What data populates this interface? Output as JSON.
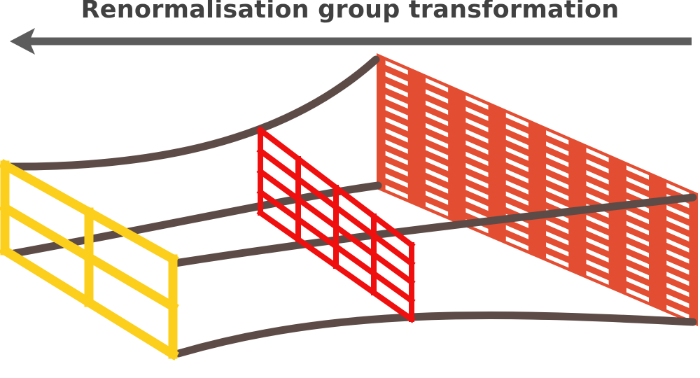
{
  "title": "Renormalisation group transformation",
  "colors": {
    "arrow": "#5c5c5c",
    "edge": "#5d4b47",
    "coarse_lattice": "#fccf1c",
    "medium_lattice": "#f00f0f",
    "fine_lattice": "#e34d32",
    "background": "#ffffff"
  },
  "lattices": [
    {
      "name": "coarse-lattice",
      "divisions": [
        2,
        2
      ]
    },
    {
      "name": "medium-lattice",
      "divisions": [
        4,
        4
      ]
    },
    {
      "name": "fine-lattice",
      "divisions": [
        8,
        12
      ]
    }
  ]
}
